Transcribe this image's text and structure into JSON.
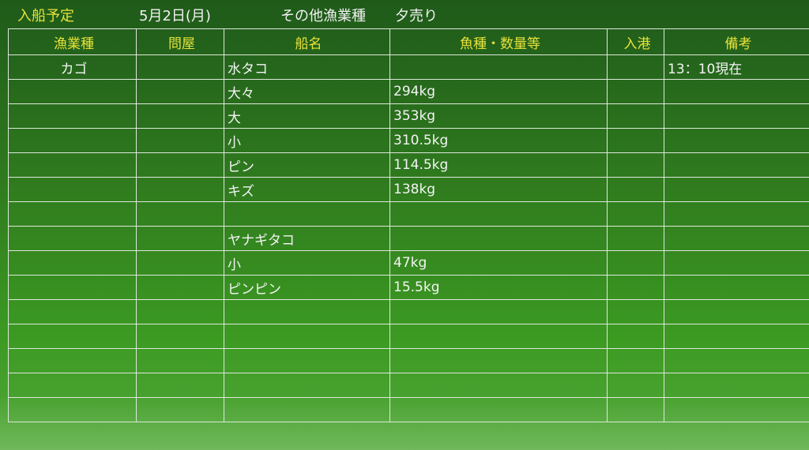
{
  "header": {
    "title": "入船予定",
    "date": "5月2日(月)",
    "category": "その他漁業種",
    "session": "夕売り"
  },
  "columns": [
    "漁業種",
    "問屋",
    "船名",
    "魚種・数量等",
    "入港",
    "備考"
  ],
  "rows": [
    [
      "カゴ",
      "",
      "水タコ",
      "",
      "",
      "13：10現在"
    ],
    [
      "",
      "",
      "大々",
      "294kg",
      "",
      ""
    ],
    [
      "",
      "",
      "大",
      "353kg",
      "",
      ""
    ],
    [
      "",
      "",
      "小",
      "310.5kg",
      "",
      ""
    ],
    [
      "",
      "",
      "ピン",
      "114.5kg",
      "",
      ""
    ],
    [
      "",
      "",
      "キズ",
      "138kg",
      "",
      ""
    ],
    [
      "",
      "",
      "",
      "",
      "",
      ""
    ],
    [
      "",
      "",
      "ヤナギタコ",
      "",
      "",
      ""
    ],
    [
      "",
      "",
      "小",
      "47kg",
      "",
      ""
    ],
    [
      "",
      "",
      "ピンピン",
      "15.5kg",
      "",
      ""
    ],
    [
      "",
      "",
      "",
      "",
      "",
      ""
    ],
    [
      "",
      "",
      "",
      "",
      "",
      ""
    ],
    [
      "",
      "",
      "",
      "",
      "",
      ""
    ],
    [
      "",
      "",
      "",
      "",
      "",
      ""
    ],
    [
      "",
      "",
      "",
      "",
      "",
      ""
    ]
  ],
  "colors": {
    "board": "#2f7a1e",
    "header_text": "#e8e23a",
    "body_text": "#f4f4f4",
    "grid": "#dfe8dc"
  }
}
